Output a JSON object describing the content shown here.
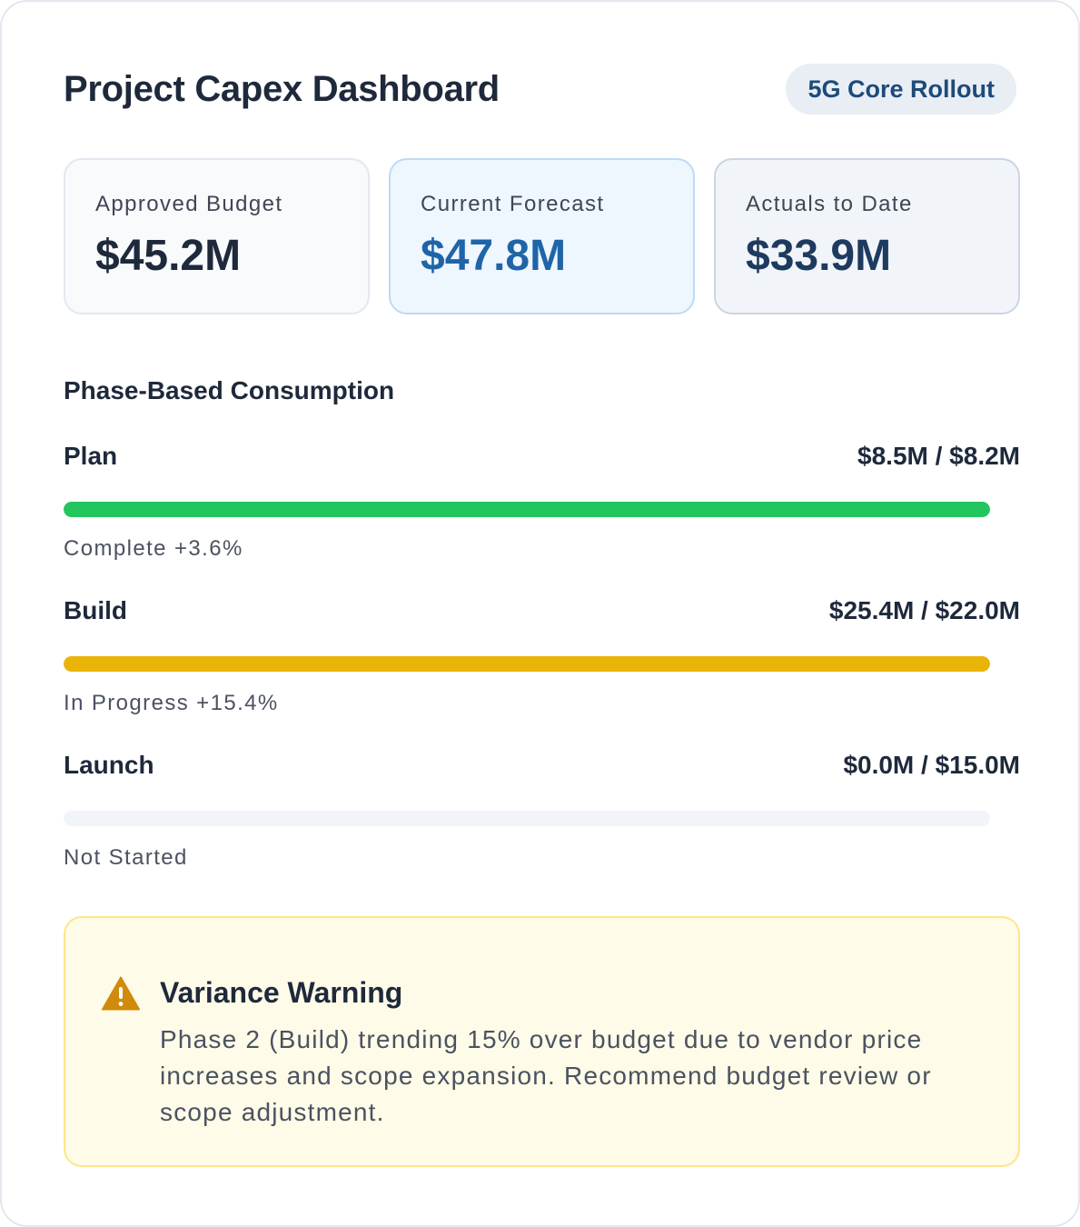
{
  "header": {
    "title": "Project Capex Dashboard",
    "badge": "5G Core Rollout"
  },
  "metrics": [
    {
      "label": "Approved Budget",
      "value": "$45.2M"
    },
    {
      "label": "Current Forecast",
      "value": "$47.8M"
    },
    {
      "label": "Actuals to Date",
      "value": "$33.9M"
    }
  ],
  "consumption": {
    "title": "Phase-Based Consumption",
    "phases": [
      {
        "name": "Plan",
        "amount": "$8.5M / $8.2M",
        "status": "Complete +3.6%",
        "progress": 1.0,
        "color": "#22c55e"
      },
      {
        "name": "Build",
        "amount": "$25.4M / $22.0M",
        "status": "In Progress +15.4%",
        "progress": 1.0,
        "color": "#eab308"
      },
      {
        "name": "Launch",
        "amount": "$0.0M / $15.0M",
        "status": "Not Started",
        "progress": 0.0,
        "color": "#94a3b8"
      }
    ]
  },
  "warning": {
    "icon": "warning-triangle-icon",
    "title": "Variance Warning",
    "body": "Phase 2 (Build) trending 15% over budget due to vendor price increases and scope expansion. Recommend budget review or scope adjustment."
  },
  "colors": {
    "accent": "#2064a8",
    "badge_bg": "#e8eef4",
    "warning_bg": "#fefbe8",
    "warning_border": "#fde68a",
    "warning_icon": "#d08a0c"
  }
}
